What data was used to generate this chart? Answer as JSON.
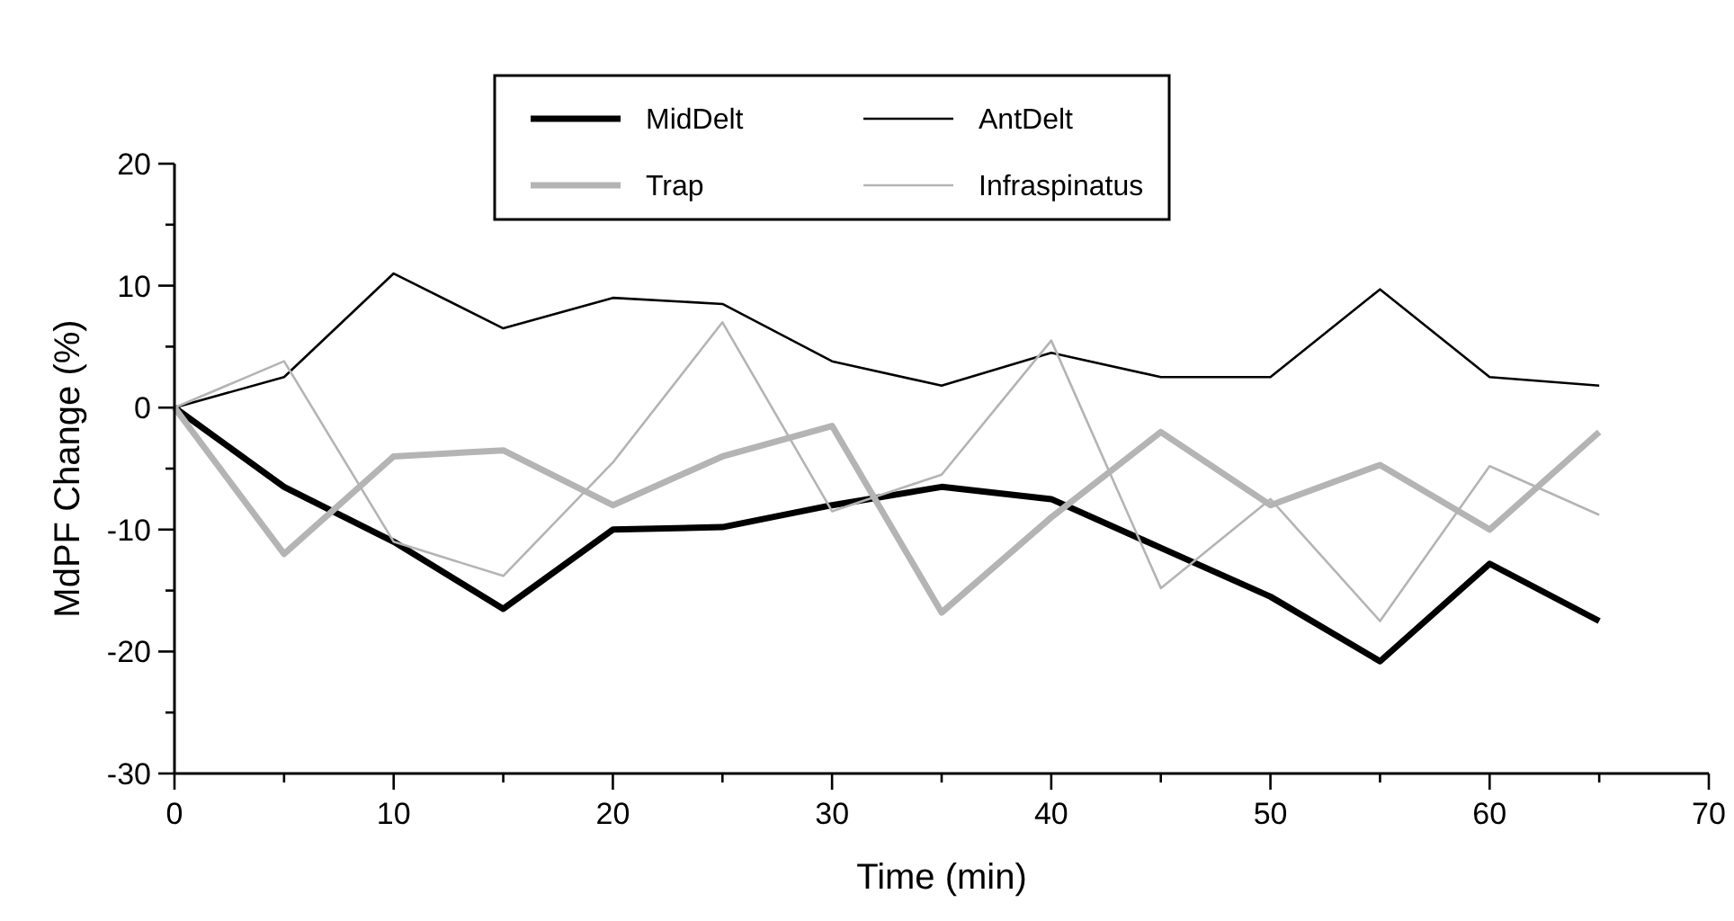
{
  "chart_data": {
    "type": "line",
    "xlabel": "Time (min)",
    "ylabel": "MdPF Change (%)",
    "x": [
      0,
      5,
      10,
      15,
      20,
      25,
      30,
      35,
      40,
      45,
      50,
      55,
      60,
      65
    ],
    "xlim": [
      0,
      70
    ],
    "xticks": [
      0,
      {
        "value": 5,
        "label": null
      },
      10,
      {
        "value": 15,
        "label": null
      },
      20,
      {
        "value": 25,
        "label": null
      },
      30,
      {
        "value": 35,
        "label": null
      },
      40,
      {
        "value": 45,
        "label": null
      },
      50,
      {
        "value": 55,
        "label": null
      },
      60,
      {
        "value": 65,
        "label": null
      },
      70
    ],
    "ylim": [
      -30,
      20
    ],
    "yticks": [
      -30,
      {
        "value": -25,
        "label": null
      },
      -20,
      {
        "value": -15,
        "label": null
      },
      -10,
      {
        "value": -5,
        "label": null
      },
      0,
      {
        "value": 5,
        "label": null
      },
      10,
      {
        "value": 15,
        "label": null
      },
      20
    ],
    "grid": false,
    "legend": "top",
    "line_style": "solid",
    "series": [
      {
        "name": "MidDelt",
        "color": "#000000",
        "values": [
          0,
          -6.5,
          -11,
          -16.5,
          -10,
          -9.8,
          -8,
          -6.5,
          -7.5,
          -11.5,
          -15.5,
          -20.8,
          -12.8,
          -17.5
        ]
      },
      {
        "name": "AntDelt",
        "color": "#000000",
        "values": [
          0,
          2.5,
          11,
          6.5,
          9,
          8.5,
          3.8,
          1.8,
          4.5,
          2.5,
          2.5,
          9.7,
          2.5,
          1.8
        ]
      },
      {
        "name": "Trap",
        "color": "#b4b4b4",
        "values": [
          0,
          -12,
          -4,
          -3.5,
          -8,
          -4,
          -1.5,
          -16.8,
          -9,
          -2,
          -8,
          -4.7,
          -10,
          -2
        ]
      },
      {
        "name": "Infraspinatus",
        "color": "#b4b4b4",
        "values": [
          0,
          3.8,
          -11,
          -13.8,
          -4.5,
          7,
          -8.5,
          -5.5,
          5.5,
          -14.8,
          -7.5,
          -17.5,
          -4.8,
          -8.8
        ]
      }
    ]
  }
}
